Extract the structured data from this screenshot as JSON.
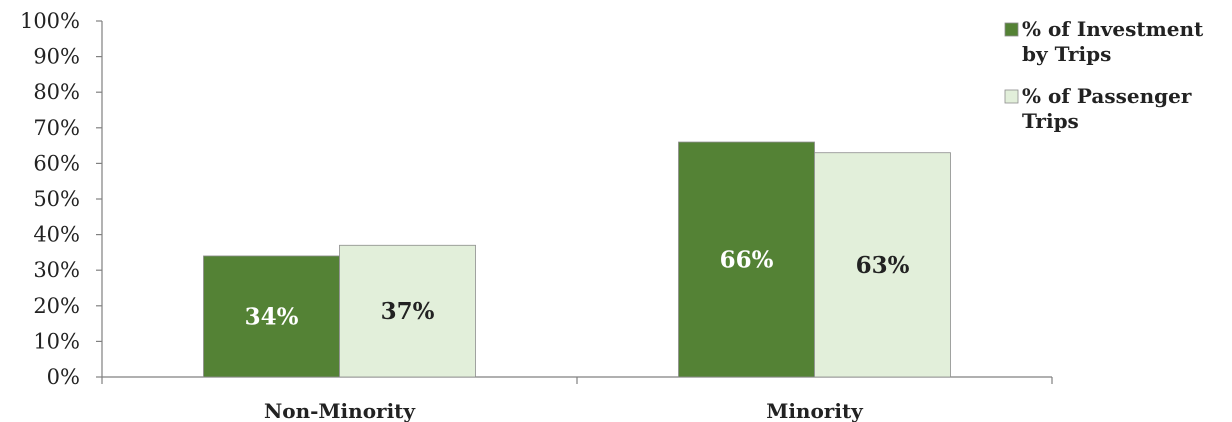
{
  "chart_data": {
    "type": "bar",
    "categories": [
      "Non-Minority",
      "Minority"
    ],
    "series": [
      {
        "name": "% of Investment by Trips",
        "legend_lines": [
          "% of Investment",
          "by Trips"
        ],
        "values": [
          34,
          66
        ],
        "labels": [
          "34%",
          "66%"
        ],
        "color": "#548235",
        "label_color": "#ffffff"
      },
      {
        "name": "% of Passenger Trips",
        "legend_lines": [
          "% of Passenger",
          "Trips"
        ],
        "values": [
          37,
          63
        ],
        "labels": [
          "37%",
          "63%"
        ],
        "color": "#e2efda",
        "label_color": "#222222"
      }
    ],
    "ylim": [
      0,
      100
    ],
    "yticks": [
      0,
      10,
      20,
      30,
      40,
      50,
      60,
      70,
      80,
      90,
      100
    ],
    "ytick_labels": [
      "0%",
      "10%",
      "20%",
      "30%",
      "40%",
      "50%",
      "60%",
      "70%",
      "80%",
      "90%",
      "100%"
    ],
    "grid": false,
    "legend_position": "top-right",
    "title": "",
    "xlabel": "",
    "ylabel": ""
  }
}
